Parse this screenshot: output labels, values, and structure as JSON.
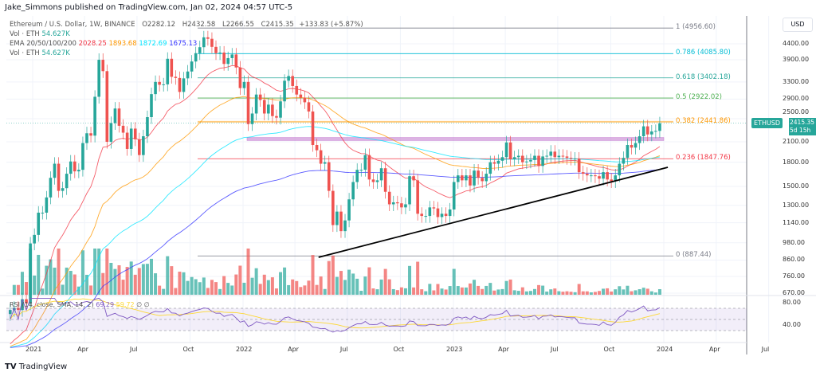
{
  "publisher": "Jake_Simmons published on TradingView.com, Jan 02, 2024 04:57 UTC-5",
  "legend": {
    "symbol": "Ethereum / U.S. Dollar, 1W, BINANCE",
    "o": "O2282.12",
    "h": "H2432.58",
    "l": "L2266.55",
    "c": "C2415.35",
    "chg": "+133.83 (+5.87%)",
    "vol_label": "Vol · ETH",
    "vol_value": "54.627K",
    "ema_label": "EMA 20/50/100/200",
    "ema_values": [
      "2028.25",
      "1893.68",
      "1872.69",
      "1675.13"
    ],
    "rsi_label": "RSI (14, close, SMA, 14, 2)",
    "rsi_value": "69.29",
    "rsi_sma": "59.72",
    "rsi_extra": "∅ ∅"
  },
  "colors": {
    "up": "#26a69a",
    "down": "#ef5350",
    "ema20": "#f23645",
    "ema50": "#ff9800",
    "ema100": "#00e5ff",
    "ema200": "#3333ff",
    "rsi": "#7e57c2",
    "rsi_sma": "#fdd835",
    "band": "#ce93d8"
  },
  "price_axis": {
    "unit": "USD",
    "scale": "log",
    "ticks": [
      "4400.00",
      "3900.00",
      "3300.00",
      "2900.00",
      "2500.00",
      "2100.00",
      "1800.00",
      "1500.00",
      "1300.00",
      "1140.00",
      "980.00",
      "860.00",
      "760.00",
      "670.00"
    ]
  },
  "last_price": {
    "symbol": "ETHUSD",
    "price": "2415.35",
    "countdown": "5d 15h"
  },
  "rsi_axis": [
    "80.00",
    "40.00"
  ],
  "time_axis": [
    "2021",
    "Apr",
    "Jul",
    "Oct",
    "2022",
    "Apr",
    "Jul",
    "Oct",
    "2023",
    "Apr",
    "Jul",
    "Oct",
    "2024",
    "Apr",
    "Jul"
  ],
  "fib_levels": [
    {
      "label": "1 (4956.60)",
      "price": 4956.6,
      "color": "#787b86"
    },
    {
      "label": "0.786 (4085.80)",
      "price": 4085.8,
      "color": "#00bcd4"
    },
    {
      "label": "0.618 (3402.18)",
      "price": 3402.18,
      "color": "#26a69a"
    },
    {
      "label": "0.5 (2922.02)",
      "price": 2922.02,
      "color": "#4caf50"
    },
    {
      "label": "0.382 (2441.86)",
      "price": 2441.86,
      "color": "#ff9800"
    },
    {
      "label": "0.236 (1847.76)",
      "price": 1847.76,
      "color": "#f23645"
    },
    {
      "label": "0 (887.44)",
      "price": 887.44,
      "color": "#787b86"
    }
  ],
  "chart_data": {
    "type": "candlestick",
    "title": "Ethereum / U.S. Dollar, 1W, BINANCE",
    "y_scale": "log",
    "ylim": [
      620,
      5200
    ],
    "xlim": [
      "2020-11-23",
      "2024-08-01"
    ],
    "start_week": "2020-11-23",
    "weekly_close": [
      590,
      600,
      590,
      640,
      620,
      975,
      1040,
      1230,
      1230,
      1380,
      1600,
      1780,
      1450,
      1480,
      1650,
      1810,
      1680,
      1700,
      2080,
      2240,
      2200,
      2950,
      3900,
      3580,
      2100,
      2420,
      2700,
      2370,
      2250,
      1990,
      2320,
      2140,
      1900,
      2190,
      2530,
      3010,
      3300,
      3230,
      3240,
      3930,
      3430,
      3400,
      3060,
      3390,
      3570,
      3850,
      4100,
      4290,
      4620,
      4570,
      4300,
      4100,
      4120,
      3780,
      3950,
      4060,
      3680,
      3150,
      3300,
      2400,
      2600,
      3000,
      2880,
      2600,
      2780,
      2550,
      2520,
      2850,
      3330,
      3450,
      3200,
      3000,
      2930,
      2830,
      2640,
      2050,
      1970,
      1780,
      1800,
      1450,
      1120,
      1240,
      1070,
      1160,
      1360,
      1550,
      1700,
      1700,
      1900,
      1580,
      1550,
      1570,
      1720,
      1440,
      1310,
      1330,
      1320,
      1280,
      1310,
      1620,
      1570,
      1220,
      1200,
      1200,
      1280,
      1270,
      1190,
      1220,
      1200,
      1260,
      1550,
      1630,
      1570,
      1630,
      1510,
      1690,
      1600,
      1560,
      1650,
      1800,
      1780,
      1820,
      1870,
      2090,
      1840,
      1870,
      1890,
      1800,
      1810,
      1830,
      1890,
      1750,
      1880,
      1890,
      1950,
      1870,
      1890,
      1880,
      1860,
      1850,
      1850,
      1670,
      1650,
      1630,
      1630,
      1620,
      1590,
      1670,
      1580,
      1560,
      1630,
      1780,
      1860,
      2050,
      2010,
      2080,
      2190,
      2360,
      2220,
      2270,
      2280,
      2415.35
    ],
    "resistance_band": [
      2120,
      2170
    ],
    "trendline": [
      {
        "date": "2022-05-12",
        "price": 878
      },
      {
        "date": "2024-01-08",
        "price": 1732
      }
    ],
    "indicators": [
      "EMA 20",
      "EMA 50",
      "EMA 100",
      "EMA 200",
      "Volume",
      "RSI 14 with SMA 14"
    ]
  },
  "branding": "TradingView"
}
